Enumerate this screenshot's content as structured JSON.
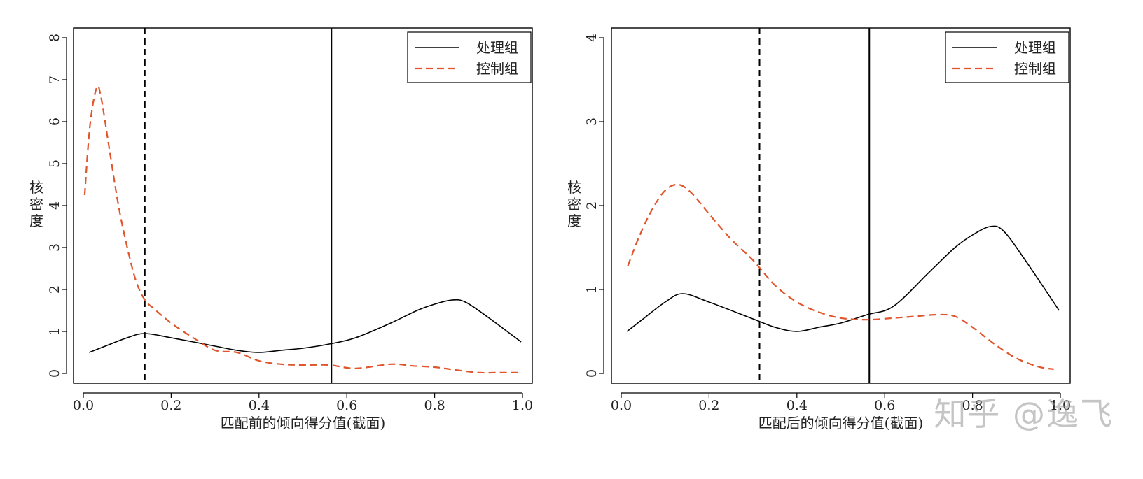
{
  "watermark": "知乎 @逸飞",
  "legend_entries": [
    "处理组",
    "控制组"
  ],
  "colors": {
    "treatment": "#000000",
    "control": "#e0552b",
    "axis": "#000000"
  },
  "chart_data": [
    {
      "type": "line",
      "title": "",
      "xlabel": "匹配前的倾向得分值(截面)",
      "ylabel": "核密度",
      "xlim": [
        0.0,
        1.0
      ],
      "ylim": [
        0,
        8
      ],
      "xticks": [
        "0.0",
        "0.2",
        "0.4",
        "0.6",
        "0.8",
        "1.0"
      ],
      "yticks": [
        "0",
        "1",
        "2",
        "3",
        "4",
        "5",
        "6",
        "7",
        "8"
      ],
      "legend_position": "top-right",
      "vlines": [
        {
          "x": 0.14,
          "style": "dashed"
        },
        {
          "x": 0.565,
          "style": "solid"
        }
      ],
      "series": [
        {
          "name": "处理组",
          "style": "solid",
          "x": [
            0.013,
            0.05,
            0.1,
            0.14,
            0.2,
            0.3,
            0.35,
            0.4,
            0.45,
            0.5,
            0.56,
            0.62,
            0.7,
            0.76,
            0.8,
            0.84,
            0.87,
            0.92,
            0.997
          ],
          "y": [
            0.5,
            0.65,
            0.85,
            0.95,
            0.85,
            0.65,
            0.55,
            0.5,
            0.55,
            0.6,
            0.7,
            0.85,
            1.2,
            1.5,
            1.65,
            1.75,
            1.7,
            1.35,
            0.75
          ]
        },
        {
          "name": "控制组",
          "style": "dashed",
          "x": [
            0.003,
            0.015,
            0.03,
            0.04,
            0.06,
            0.08,
            0.1,
            0.12,
            0.14,
            0.16,
            0.2,
            0.25,
            0.3,
            0.35,
            0.4,
            0.45,
            0.5,
            0.56,
            0.62,
            0.7,
            0.75,
            0.8,
            0.85,
            0.9,
            0.95,
            0.997
          ],
          "y": [
            4.25,
            5.9,
            6.8,
            6.6,
            5.3,
            4.0,
            3.0,
            2.2,
            1.75,
            1.55,
            1.2,
            0.85,
            0.55,
            0.5,
            0.3,
            0.22,
            0.2,
            0.2,
            0.12,
            0.22,
            0.18,
            0.15,
            0.08,
            0.02,
            0.02,
            0.02
          ]
        }
      ]
    },
    {
      "type": "line",
      "title": "",
      "xlabel": "匹配后的倾向得分值(截面)",
      "ylabel": "核密度",
      "xlim": [
        0.0,
        1.0
      ],
      "ylim": [
        0,
        4
      ],
      "xticks": [
        "0.0",
        "0.2",
        "0.4",
        "0.6",
        "0.8",
        "1.0"
      ],
      "yticks": [
        "0",
        "1",
        "2",
        "3",
        "4"
      ],
      "legend_position": "top-right",
      "vlines": [
        {
          "x": 0.315,
          "style": "dashed"
        },
        {
          "x": 0.565,
          "style": "solid"
        }
      ],
      "series": [
        {
          "name": "处理组",
          "style": "solid",
          "x": [
            0.013,
            0.05,
            0.1,
            0.14,
            0.2,
            0.3,
            0.35,
            0.4,
            0.45,
            0.5,
            0.56,
            0.62,
            0.7,
            0.76,
            0.8,
            0.84,
            0.87,
            0.92,
            0.997
          ],
          "y": [
            0.5,
            0.65,
            0.85,
            0.95,
            0.85,
            0.65,
            0.55,
            0.5,
            0.55,
            0.6,
            0.7,
            0.8,
            1.2,
            1.5,
            1.65,
            1.75,
            1.7,
            1.35,
            0.75
          ]
        },
        {
          "name": "控制组",
          "style": "dashed",
          "x": [
            0.015,
            0.04,
            0.07,
            0.1,
            0.13,
            0.16,
            0.2,
            0.25,
            0.3,
            0.35,
            0.4,
            0.45,
            0.5,
            0.56,
            0.62,
            0.67,
            0.72,
            0.76,
            0.8,
            0.85,
            0.9,
            0.95,
            0.985
          ],
          "y": [
            1.28,
            1.62,
            1.95,
            2.18,
            2.25,
            2.15,
            1.9,
            1.6,
            1.35,
            1.05,
            0.85,
            0.73,
            0.66,
            0.64,
            0.66,
            0.68,
            0.7,
            0.68,
            0.55,
            0.35,
            0.18,
            0.08,
            0.05
          ]
        }
      ]
    }
  ]
}
